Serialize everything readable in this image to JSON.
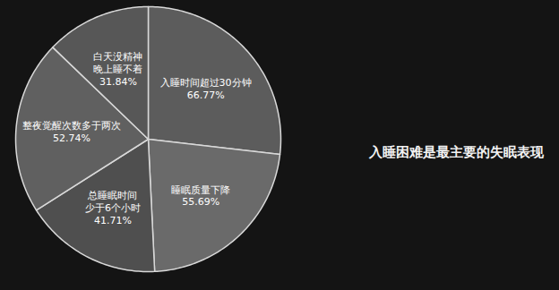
{
  "chart_data": {
    "type": "pie",
    "title": "入睡困难是最主要的失眠表现",
    "categories": [
      "入睡时间超过30分钟",
      "睡眠质量下降",
      "总睡眠时间少于6个小时",
      "整夜觉醒次数多于两次",
      "白天没精神晚上睡不着"
    ],
    "values": [
      66.77,
      55.69,
      41.71,
      52.74,
      31.84
    ],
    "value_labels": [
      "66.77%",
      "55.69%",
      "41.71%",
      "52.74%",
      "31.84%"
    ],
    "colors": [
      "#5c5c5c",
      "#6a6a6a",
      "#4f4f4f",
      "#606060",
      "#575757"
    ],
    "data_labels": true
  }
}
